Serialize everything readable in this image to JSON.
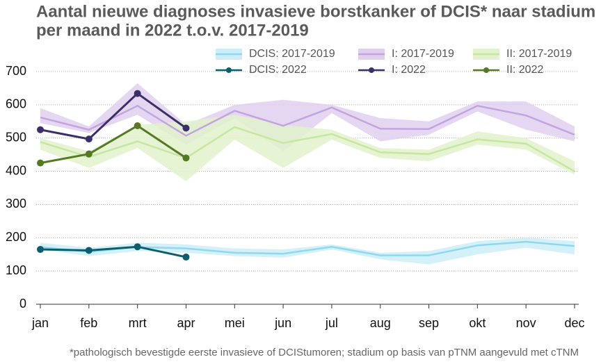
{
  "chart_data": {
    "type": "line",
    "title": [
      "Aantal nieuwe diagnoses invasieve borstkanker of DCIS* naar stadium",
      "per maand in 2022 t.o.v. 2017-2019"
    ],
    "footnote": "*pathologisch bevestigde eerste invasieve of DCIStumoren; stadium op basis van pTNM aangevuld met cTNM",
    "categories": [
      "jan",
      "feb",
      "mrt",
      "apr",
      "mei",
      "jun",
      "jul",
      "aug",
      "sep",
      "okt",
      "nov",
      "dec"
    ],
    "ylim": [
      0,
      700
    ],
    "yticks": [
      0,
      100,
      200,
      300,
      400,
      500,
      600,
      700
    ],
    "grid": true,
    "series": [
      {
        "name": "DCIS: 2017-2019",
        "color": "#8fd8ee",
        "band_color": "#cdeef8",
        "values": [
          172,
          158,
          172,
          168,
          155,
          152,
          173,
          147,
          147,
          177,
          188,
          175
        ],
        "lower": [
          165,
          145,
          160,
          155,
          145,
          140,
          165,
          135,
          120,
          150,
          170,
          150
        ],
        "upper": [
          185,
          170,
          185,
          180,
          168,
          165,
          180,
          155,
          160,
          190,
          200,
          190
        ]
      },
      {
        "name": "I: 2017-2019",
        "color": "#c2a4de",
        "band_color": "#e0d0ee",
        "values": [
          562,
          525,
          597,
          507,
          582,
          537,
          592,
          528,
          527,
          597,
          568,
          510
        ],
        "lower": [
          545,
          515,
          570,
          480,
          560,
          460,
          575,
          490,
          510,
          580,
          525,
          490
        ],
        "upper": [
          590,
          535,
          665,
          540,
          600,
          615,
          600,
          560,
          550,
          610,
          610,
          535
        ]
      },
      {
        "name": "II: 2017-2019",
        "color": "#c6e6a2",
        "band_color": "#e2f2cc",
        "values": [
          488,
          443,
          490,
          440,
          533,
          485,
          512,
          457,
          452,
          496,
          483,
          400
        ],
        "lower": [
          465,
          410,
          470,
          370,
          495,
          410,
          495,
          440,
          430,
          480,
          465,
          390
        ],
        "upper": [
          500,
          460,
          540,
          550,
          570,
          540,
          525,
          470,
          465,
          520,
          500,
          430
        ]
      },
      {
        "name": "DCIS: 2022",
        "color": "#0b5e6e",
        "values": [
          165,
          162,
          173,
          142,
          null,
          null,
          null,
          null,
          null,
          null,
          null,
          null
        ]
      },
      {
        "name": "I: 2022",
        "color": "#3b2f6b",
        "values": [
          525,
          497,
          634,
          530,
          null,
          null,
          null,
          null,
          null,
          null,
          null,
          null
        ]
      },
      {
        "name": "II: 2022",
        "color": "#557a23",
        "values": [
          425,
          452,
          537,
          440,
          null,
          null,
          null,
          null,
          null,
          null,
          null,
          null
        ]
      }
    ]
  }
}
